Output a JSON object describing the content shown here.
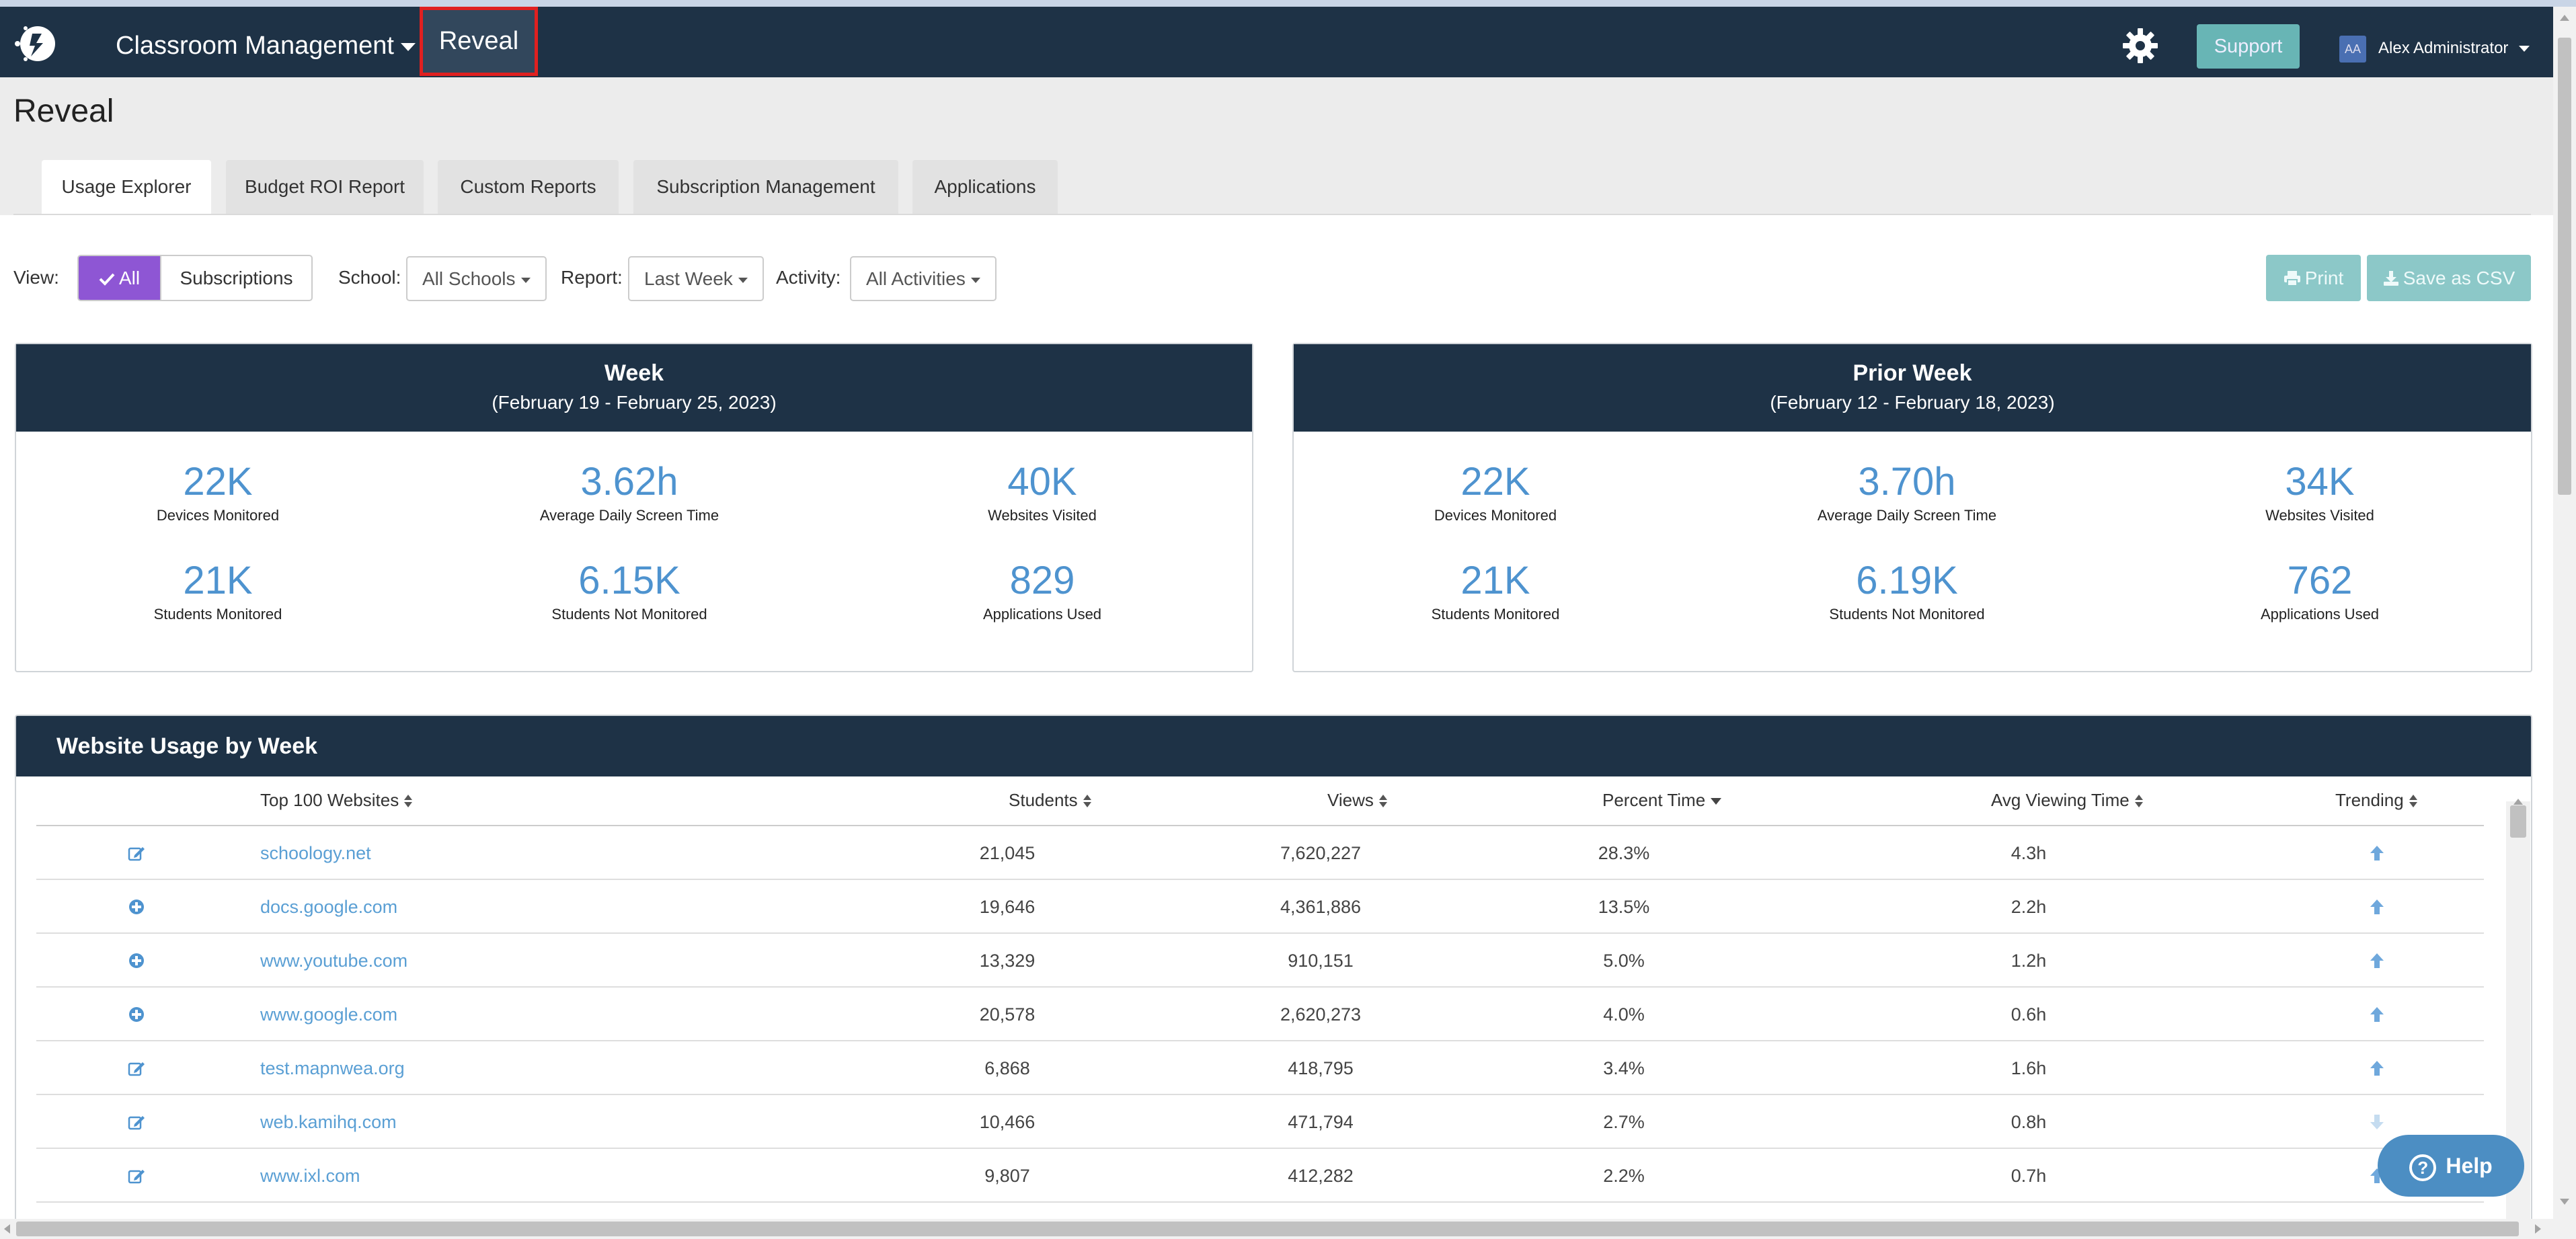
{
  "navbar": {
    "menu_label": "Classroom Management",
    "active_item": "Reveal",
    "support_label": "Support",
    "avatar_initials": "AA",
    "user_name": "Alex Administrator"
  },
  "page": {
    "title": "Reveal"
  },
  "tabs": [
    {
      "label": "Usage Explorer",
      "active": true
    },
    {
      "label": "Budget ROI Report"
    },
    {
      "label": "Custom Reports"
    },
    {
      "label": "Subscription Management"
    },
    {
      "label": "Applications"
    }
  ],
  "filters": {
    "view_label": "View:",
    "view_all": "All",
    "view_subscriptions": "Subscriptions",
    "school_label": "School:",
    "school_value": "All Schools",
    "report_label": "Report:",
    "report_value": "Last Week",
    "activity_label": "Activity:",
    "activity_value": "All Activities",
    "print_label": "Print",
    "csv_label": "Save as CSV"
  },
  "week": {
    "title": "Week",
    "range": "(February 19 - February 25, 2023)",
    "stats": [
      {
        "value": "22K",
        "label": "Devices Monitored"
      },
      {
        "value": "3.62h",
        "label": "Average Daily Screen Time"
      },
      {
        "value": "40K",
        "label": "Websites Visited"
      },
      {
        "value": "21K",
        "label": "Students Monitored"
      },
      {
        "value": "6.15K",
        "label": "Students Not Monitored"
      },
      {
        "value": "829",
        "label": "Applications Used"
      }
    ]
  },
  "prior_week": {
    "title": "Prior Week",
    "range": "(February 12 - February 18, 2023)",
    "stats": [
      {
        "value": "22K",
        "label": "Devices Monitored"
      },
      {
        "value": "3.70h",
        "label": "Average Daily Screen Time"
      },
      {
        "value": "34K",
        "label": "Websites Visited"
      },
      {
        "value": "21K",
        "label": "Students Monitored"
      },
      {
        "value": "6.19K",
        "label": "Students Not Monitored"
      },
      {
        "value": "762",
        "label": "Applications Used"
      }
    ]
  },
  "usage_table": {
    "title": "Website Usage by Week",
    "headers": {
      "site": "Top 100 Websites",
      "students": "Students",
      "views": "Views",
      "percent": "Percent Time",
      "avg": "Avg Viewing Time",
      "trending": "Trending"
    },
    "rows": [
      {
        "icon": "edit-icon",
        "site": "schoology.net",
        "students": "21,045",
        "views": "7,620,227",
        "percent": "28.3%",
        "avg": "4.3h",
        "trend": "up"
      },
      {
        "icon": "plus-circle-icon",
        "site": "docs.google.com",
        "students": "19,646",
        "views": "4,361,886",
        "percent": "13.5%",
        "avg": "2.2h",
        "trend": "up"
      },
      {
        "icon": "plus-circle-icon",
        "site": "www.youtube.com",
        "students": "13,329",
        "views": "910,151",
        "percent": "5.0%",
        "avg": "1.2h",
        "trend": "up"
      },
      {
        "icon": "plus-circle-icon",
        "site": "www.google.com",
        "students": "20,578",
        "views": "2,620,273",
        "percent": "4.0%",
        "avg": "0.6h",
        "trend": "up"
      },
      {
        "icon": "edit-icon",
        "site": "test.mapnwea.org",
        "students": "6,868",
        "views": "418,795",
        "percent": "3.4%",
        "avg": "1.6h",
        "trend": "up"
      },
      {
        "icon": "edit-icon",
        "site": "web.kamihq.com",
        "students": "10,466",
        "views": "471,794",
        "percent": "2.7%",
        "avg": "0.8h",
        "trend": "down"
      },
      {
        "icon": "edit-icon",
        "site": "www.ixl.com",
        "students": "9,807",
        "views": "412,282",
        "percent": "2.2%",
        "avg": "0.7h",
        "trend": "up"
      }
    ]
  },
  "help": {
    "label": "Help"
  },
  "colors": {
    "navy": "#1e3246",
    "accent_blue": "#4e93cf",
    "purple": "#8e56d4",
    "teal": "#68b5b5",
    "highlight_red": "#e02020"
  }
}
